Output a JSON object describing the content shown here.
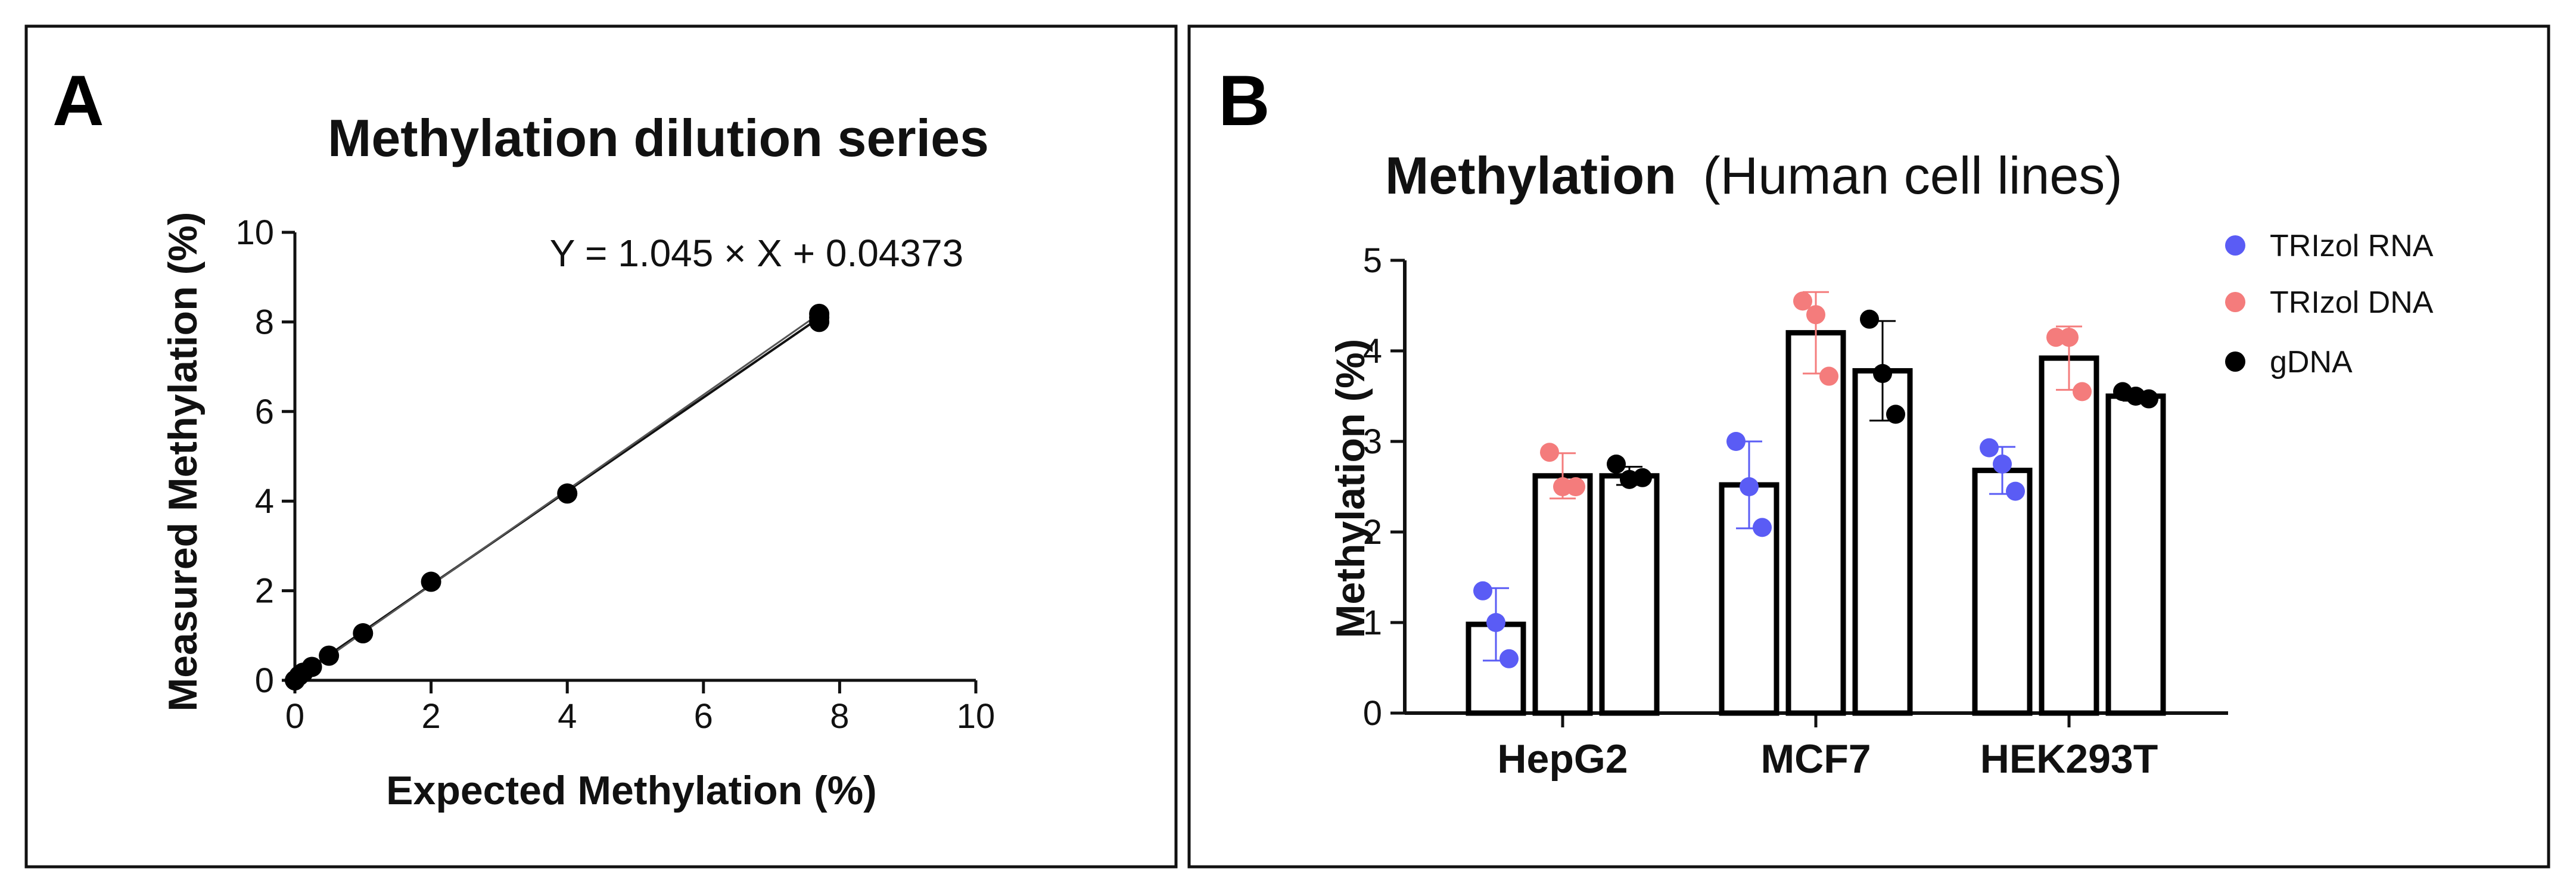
{
  "colors": {
    "trizol_rna": "#5a5cf5",
    "trizol_dna": "#f47c7c",
    "gdna": "#000000"
  },
  "panels": {
    "a": {
      "letter": "A"
    },
    "b": {
      "letter": "B"
    }
  },
  "chart_data": [
    {
      "id": "A",
      "type": "line",
      "title": "Methylation dilution series",
      "xlabel": "Expected Methylation (%)",
      "ylabel": "Measured Methylation (%)",
      "xlim": [
        0,
        10
      ],
      "ylim": [
        0,
        10
      ],
      "xticks": [
        "0",
        "2",
        "4",
        "6",
        "8",
        "10"
      ],
      "yticks": [
        "0",
        "2",
        "4",
        "6",
        "8",
        "10"
      ],
      "annotation": "Y = 1.045 × X + 0.04373",
      "fit": {
        "slope": 1.045,
        "intercept": 0.04373
      },
      "points": [
        {
          "x": 0,
          "y": 0.0
        },
        {
          "x": 0.06,
          "y": 0.1
        },
        {
          "x": 0.12,
          "y": 0.17
        },
        {
          "x": 0.25,
          "y": 0.3
        },
        {
          "x": 0.5,
          "y": 0.55
        },
        {
          "x": 1.0,
          "y": 1.05
        },
        {
          "x": 2.0,
          "y": 2.2
        },
        {
          "x": 4.0,
          "y": 4.17
        },
        {
          "x": 7.7,
          "y": 8.0
        },
        {
          "x": 7.7,
          "y": 8.1
        },
        {
          "x": 7.7,
          "y": 8.18
        }
      ]
    },
    {
      "id": "B",
      "type": "bar",
      "title": "Methylation",
      "title_suffix": "(Human cell lines)",
      "xlabel": "",
      "ylabel": "Methylation (%)",
      "ylim": [
        0,
        5
      ],
      "yticks": [
        "0",
        "1",
        "2",
        "3",
        "4",
        "5"
      ],
      "categories": [
        "HepG2",
        "MCF7",
        "HEK293T"
      ],
      "series": [
        {
          "name": "TRIzol RNA",
          "values": [
            0.98,
            2.52,
            2.68
          ],
          "sd": [
            0.4,
            0.48,
            0.26
          ],
          "points": [
            [
              1.35,
              1.0,
              0.6
            ],
            [
              3.0,
              2.5,
              2.05
            ],
            [
              2.93,
              2.75,
              2.45
            ]
          ]
        },
        {
          "name": "TRIzol DNA",
          "values": [
            2.62,
            4.2,
            3.92
          ],
          "sd": [
            0.25,
            0.45,
            0.35
          ],
          "points": [
            [
              2.88,
              2.5,
              2.5
            ],
            [
              4.55,
              4.4,
              3.72
            ],
            [
              4.15,
              4.15,
              3.55
            ]
          ]
        },
        {
          "name": "gDNA",
          "values": [
            2.62,
            3.78,
            3.5
          ],
          "sd": [
            0.1,
            0.55,
            0.05
          ],
          "points": [
            [
              2.75,
              2.58,
              2.6
            ],
            [
              4.35,
              3.75,
              3.3
            ],
            [
              3.55,
              3.5,
              3.47
            ]
          ]
        }
      ]
    }
  ]
}
